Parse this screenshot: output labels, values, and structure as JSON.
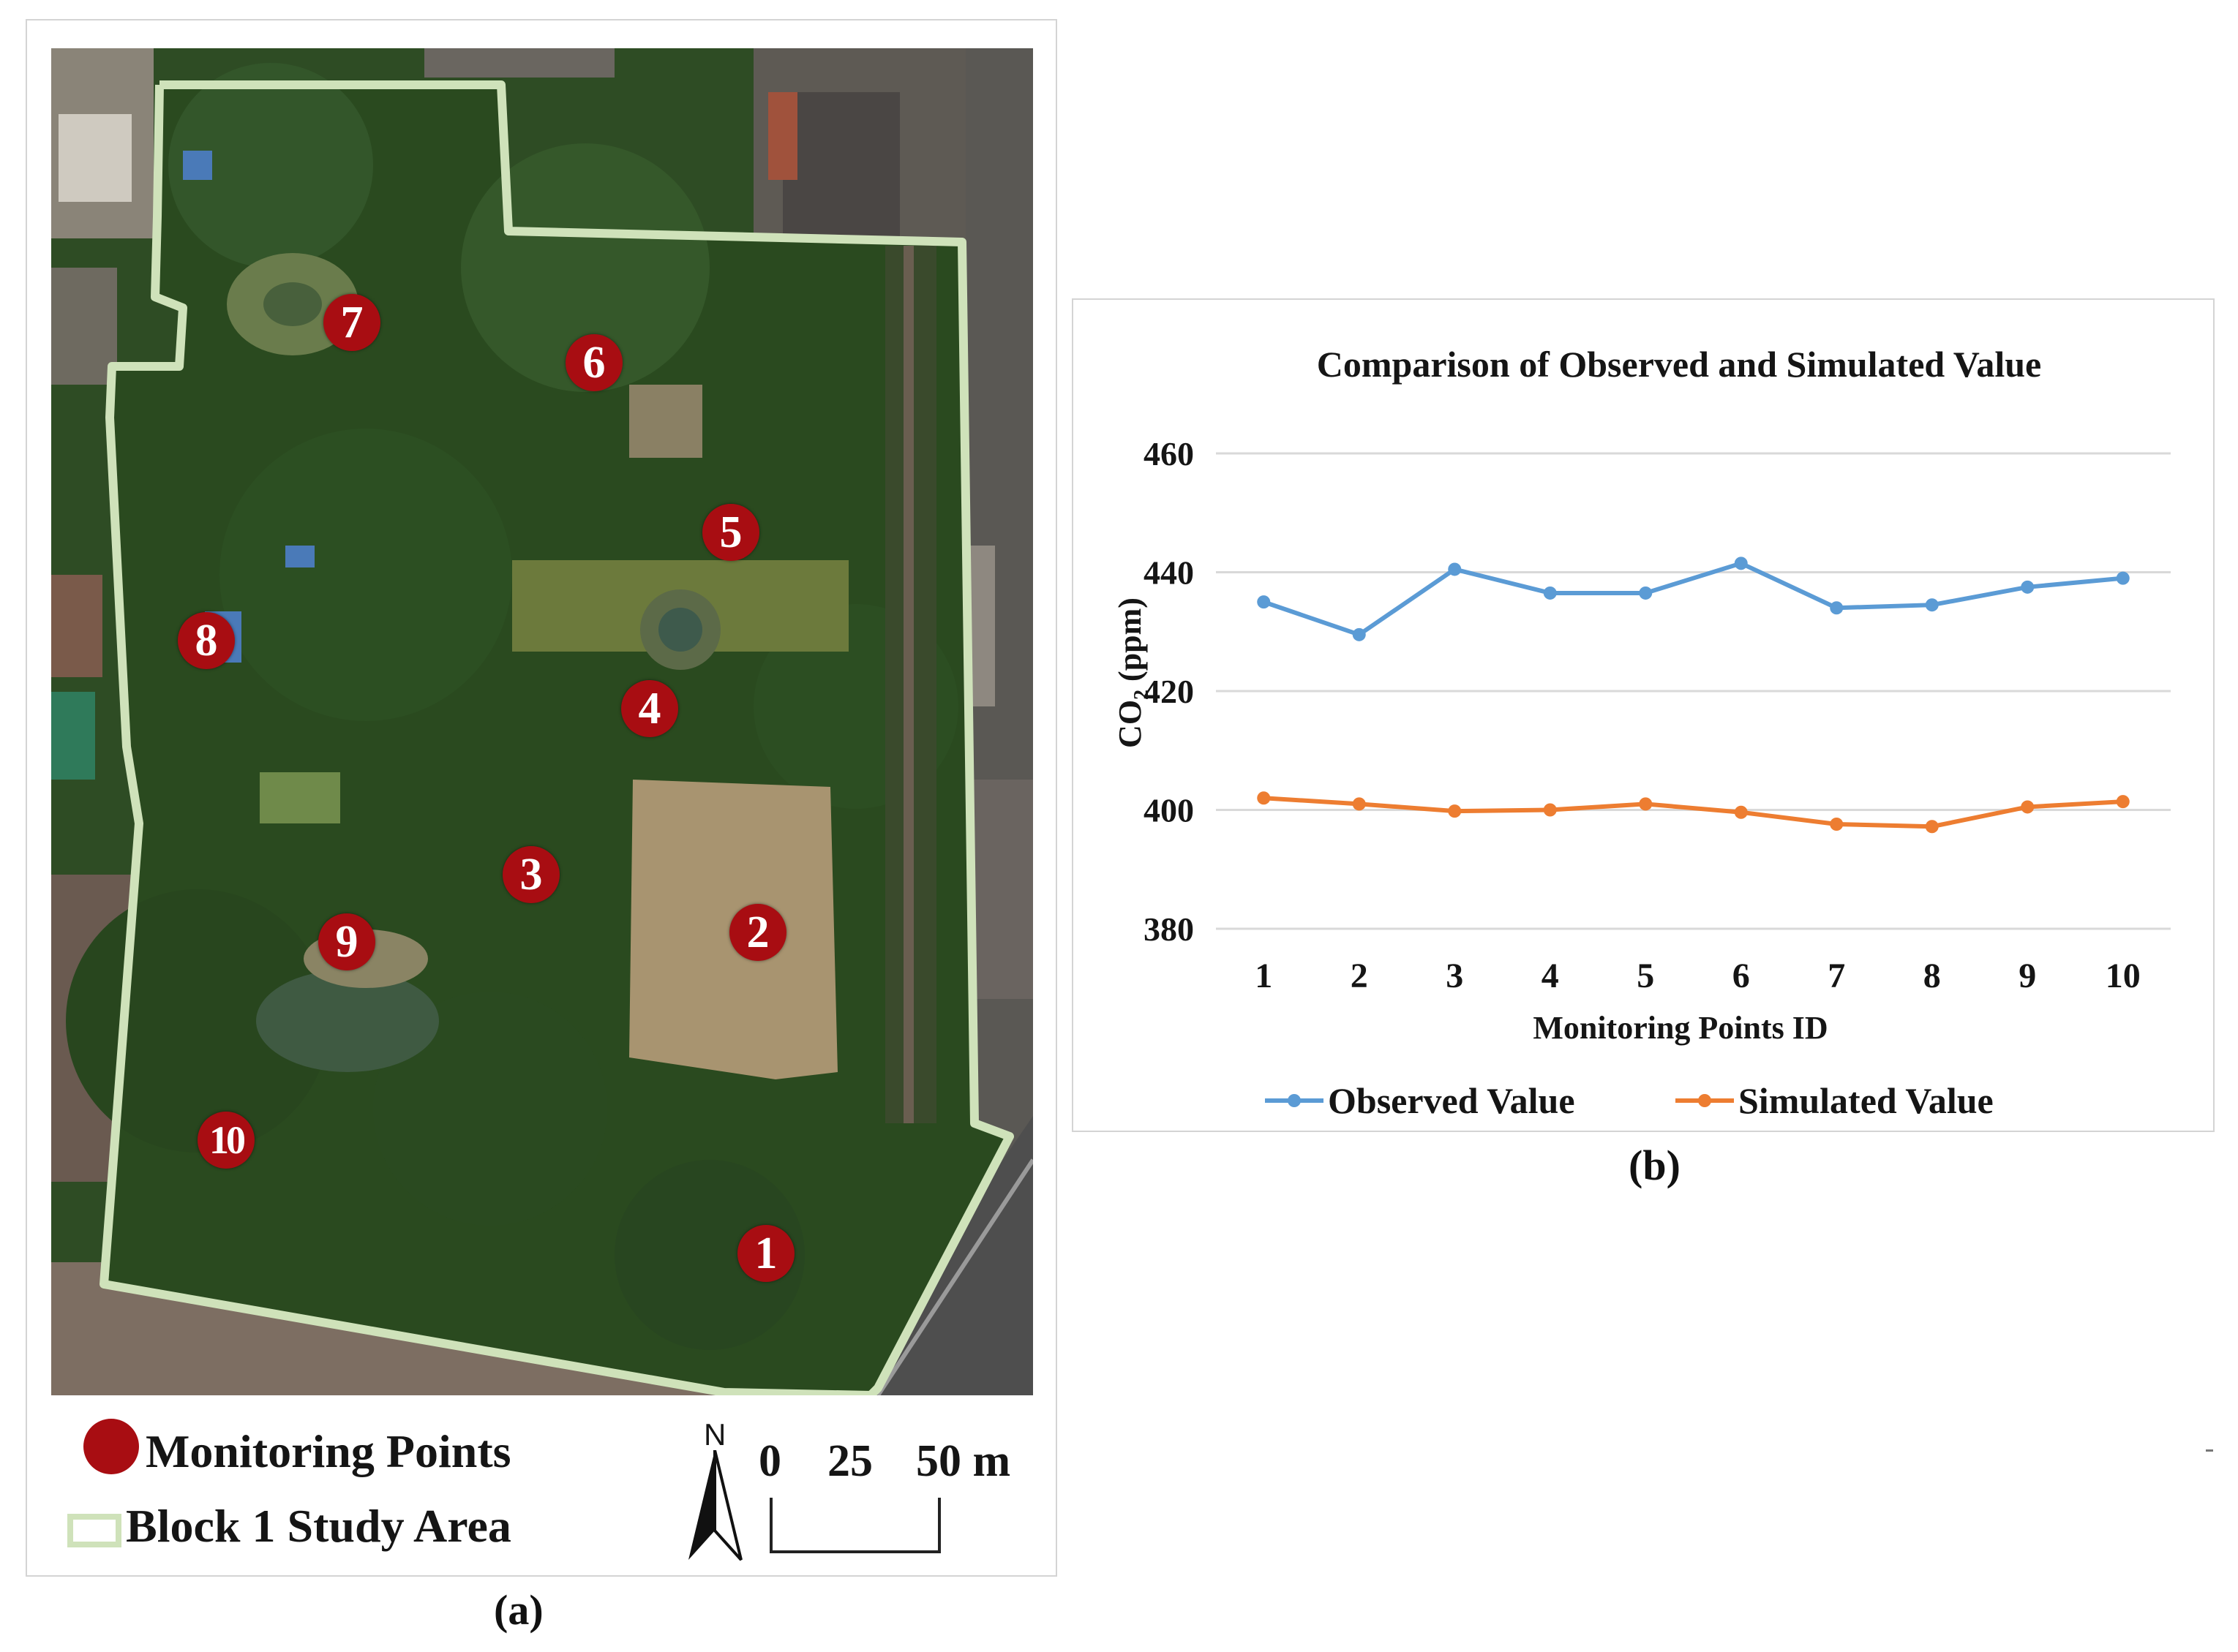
{
  "panel_a": {
    "label": "(a)",
    "points": [
      {
        "id": "1"
      },
      {
        "id": "2"
      },
      {
        "id": "3"
      },
      {
        "id": "4"
      },
      {
        "id": "5"
      },
      {
        "id": "6"
      },
      {
        "id": "7"
      },
      {
        "id": "8"
      },
      {
        "id": "9"
      },
      {
        "id": "10"
      }
    ],
    "legend": {
      "points_label": "Monitoring Points",
      "area_label": "Block 1 Study Area"
    },
    "scale_bar": {
      "ticks": [
        "0",
        "25",
        "50 m"
      ]
    },
    "north_arrow": {
      "letter": "N"
    },
    "colors": {
      "marker": "#a80d12",
      "boundary": "#cfe2ba"
    }
  },
  "panel_b": {
    "label": "(b)"
  },
  "chart_data": {
    "type": "line",
    "title": "Comparison of Observed and Simulated Value",
    "xlabel": "Monitoring Points ID",
    "ylabel": "CO₂ (ppm)",
    "categories": [
      "1",
      "2",
      "3",
      "4",
      "5",
      "6",
      "7",
      "8",
      "9",
      "10"
    ],
    "ylim": [
      380,
      460
    ],
    "yticks": [
      380,
      400,
      420,
      440,
      460
    ],
    "grid": true,
    "legend_position": "bottom",
    "series": [
      {
        "name": "Observed Value",
        "color": "#5b9bd5",
        "values": [
          435,
          429.5,
          440.5,
          436.5,
          436.5,
          441.5,
          434,
          434.5,
          437.5,
          439
        ]
      },
      {
        "name": "Simulated Value",
        "color": "#ed7d31",
        "values": [
          402,
          401,
          399.8,
          400,
          401,
          399.6,
          397.6,
          397.2,
          400.5,
          401.4
        ]
      }
    ]
  }
}
